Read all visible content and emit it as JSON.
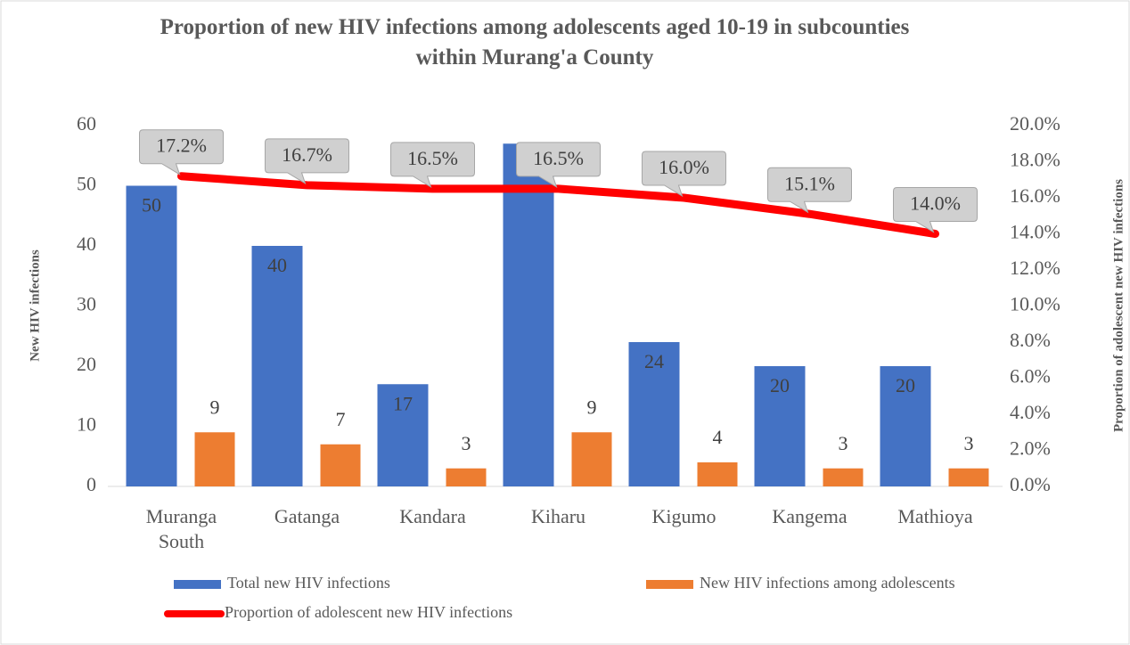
{
  "chart_data": {
    "type": "bar",
    "title": "Proportion of new HIV infections among adolescents aged 10-19 in subcounties within Murang'a County",
    "categories": [
      "Muranga South",
      "Gatanga",
      "Kandara",
      "Kiharu",
      "Kigumo",
      "Kangema",
      "Mathioya"
    ],
    "series": [
      {
        "name": "Total new HIV infections",
        "color": "#4472c4",
        "type": "bar",
        "values": [
          50,
          40,
          17,
          57,
          24,
          20,
          20
        ],
        "value_labels": [
          "50",
          "40",
          "17",
          null,
          "24",
          "20",
          "20"
        ]
      },
      {
        "name": "New HIV infections among adolescents",
        "color": "#ed7d31",
        "type": "bar",
        "values": [
          9,
          7,
          3,
          9,
          4,
          3,
          3
        ]
      },
      {
        "name": "Proportion of adolescent new HIV infections",
        "color": "#ff0000",
        "type": "line",
        "axis": "y2",
        "values": [
          17.2,
          16.7,
          16.5,
          16.5,
          16.0,
          15.1,
          14.0
        ],
        "value_labels": [
          "17.2%",
          "16.7%",
          "16.5%",
          "16.5%",
          "16.0%",
          "15.1%",
          "14.0%"
        ]
      }
    ],
    "y_label": "New HIV infections",
    "y2_label": "Proportion of adolescent new HIV infections",
    "ylim": [
      0,
      60
    ],
    "yticks": [
      0,
      10,
      20,
      30,
      40,
      50,
      60
    ],
    "y2lim": [
      0,
      20
    ],
    "y2ticks": [
      {
        "value": 0,
        "label": "0.0%"
      },
      {
        "value": 2,
        "label": "2.0%"
      },
      {
        "value": 4,
        "label": "4.0%"
      },
      {
        "value": 6,
        "label": "6.0%"
      },
      {
        "value": 8,
        "label": "8.0%"
      },
      {
        "value": 10,
        "label": "10.0%"
      },
      {
        "value": 12,
        "label": "12.0%"
      },
      {
        "value": 14,
        "label": "14.0%"
      },
      {
        "value": 16,
        "label": "16.0%"
      },
      {
        "value": 18,
        "label": "18.0%"
      },
      {
        "value": 20,
        "label": "20.0%"
      }
    ],
    "grid": false,
    "legend": "bottom"
  }
}
